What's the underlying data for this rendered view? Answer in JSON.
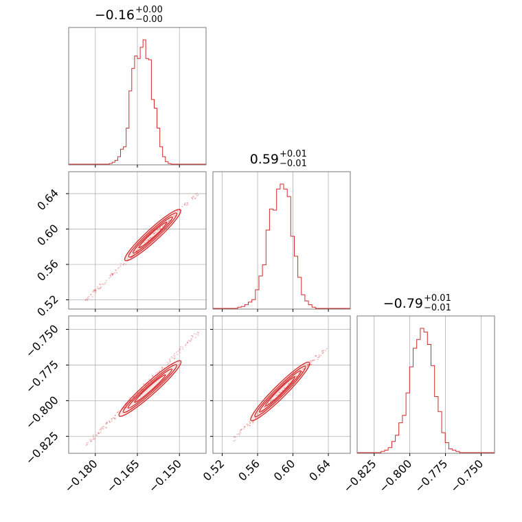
{
  "chart_data": {
    "type": "corner",
    "line_color": "#d62728",
    "grid": true,
    "parameters": [
      {
        "title_base": "−0.16",
        "title_sup": "+0.00",
        "title_sub": "−0.00",
        "range": [
          -0.1895,
          -0.1405
        ],
        "ticks": [
          -0.18,
          -0.165,
          -0.15
        ],
        "tick_labels": [
          "−0.180",
          "−0.165",
          "−0.150"
        ],
        "hist_x": [
          -0.1745,
          -0.1735,
          -0.1725,
          -0.1715,
          -0.1705,
          -0.1695,
          -0.1685,
          -0.1675,
          -0.1665,
          -0.1655,
          -0.1645,
          -0.1635,
          -0.1625,
          -0.1615,
          -0.1605,
          -0.1595,
          -0.1585,
          -0.1575,
          -0.1565,
          -0.1555,
          -0.1545,
          -0.1535
        ],
        "hist_y": [
          0.005,
          0.015,
          0.03,
          0.06,
          0.12,
          0.14,
          0.29,
          0.59,
          0.77,
          0.87,
          0.85,
          0.94,
          1.0,
          0.85,
          0.84,
          0.52,
          0.45,
          0.29,
          0.14,
          0.06,
          0.02,
          0.005
        ]
      },
      {
        "title_base": "0.59",
        "title_sup": "+0.01",
        "title_sub": "−0.01",
        "range": [
          0.5095,
          0.6648
        ],
        "ticks": [
          0.52,
          0.56,
          0.6,
          0.64
        ],
        "tick_labels": [
          "0.52",
          "0.56",
          "0.60",
          "0.64"
        ],
        "hist_x": [
          0.5395,
          0.5435,
          0.5475,
          0.5515,
          0.5555,
          0.5595,
          0.5635,
          0.5675,
          0.5715,
          0.5755,
          0.5795,
          0.5835,
          0.5875,
          0.5915,
          0.5955,
          0.5995,
          0.6035,
          0.6075,
          0.6115,
          0.6155,
          0.6195,
          0.6235
        ],
        "hist_y": [
          0.01,
          0.015,
          0.03,
          0.05,
          0.07,
          0.15,
          0.26,
          0.35,
          0.63,
          0.8,
          0.79,
          0.96,
          1.0,
          0.96,
          0.9,
          0.58,
          0.42,
          0.25,
          0.11,
          0.06,
          0.03,
          0.01
        ]
      },
      {
        "title_base": "−0.79",
        "title_sup": "+0.01",
        "title_sub": "−0.01",
        "range": [
          -0.8369,
          -0.7406
        ],
        "ticks": [
          -0.825,
          -0.8,
          -0.775,
          -0.75
        ],
        "tick_labels": [
          "−0.825",
          "−0.800",
          "−0.775",
          "−0.750"
        ],
        "hist_x": [
          -0.8189,
          -0.8164,
          -0.8139,
          -0.8114,
          -0.8089,
          -0.8064,
          -0.8039,
          -0.8014,
          -0.7989,
          -0.7964,
          -0.7939,
          -0.7914,
          -0.7889,
          -0.7864,
          -0.7839,
          -0.7814,
          -0.7789,
          -0.7764,
          -0.7739,
          -0.7714,
          -0.7689,
          -0.7664
        ],
        "hist_y": [
          0.01,
          0.02,
          0.04,
          0.09,
          0.14,
          0.24,
          0.3,
          0.48,
          0.69,
          0.84,
          0.91,
          1.0,
          0.97,
          0.87,
          0.7,
          0.45,
          0.33,
          0.16,
          0.08,
          0.03,
          0.02,
          0.01
        ]
      }
    ],
    "correlations": [
      {
        "row": 1,
        "col": 0,
        "start": [
          -0.1835,
          0.5192
        ],
        "end": [
          -0.1435,
          0.6402
        ],
        "core_start": [
          -0.1685,
          0.5672
        ],
        "core_end": [
          -0.1505,
          0.6192
        ]
      },
      {
        "row": 2,
        "col": 0,
        "start": [
          -0.1835,
          -0.832
        ],
        "end": [
          -0.1435,
          -0.752
        ],
        "core_start": [
          -0.1705,
          -0.809
        ],
        "core_end": [
          -0.1505,
          -0.774
        ]
      },
      {
        "row": 2,
        "col": 1,
        "start": [
          0.5295,
          -0.829
        ],
        "end": [
          0.6395,
          -0.762
        ],
        "core_start": [
          0.5555,
          -0.812
        ],
        "core_end": [
          0.6155,
          -0.775
        ]
      }
    ]
  }
}
